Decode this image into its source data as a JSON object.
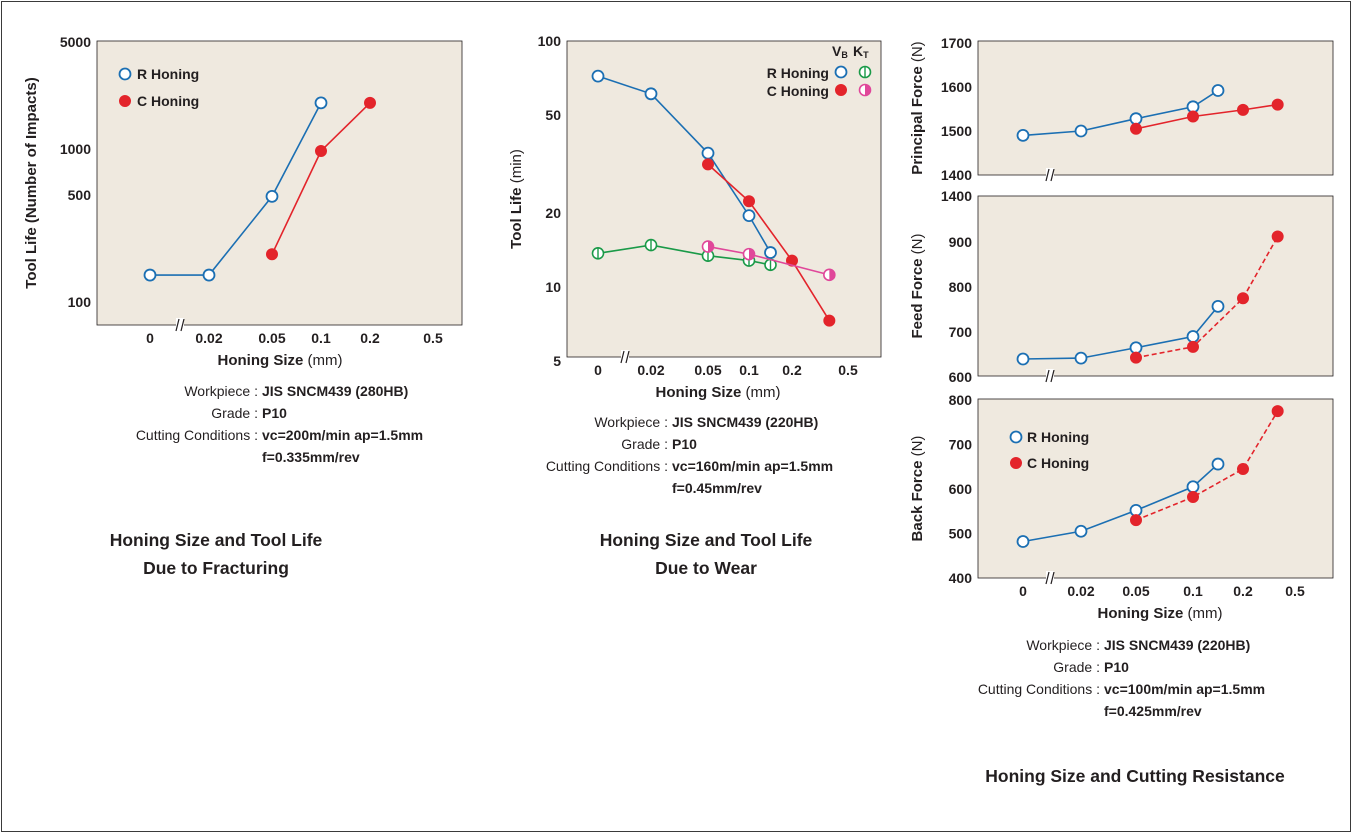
{
  "chart_data": [
    {
      "type": "line",
      "id": "fracture",
      "ylabel": "Tool Life (Number of Impacts)",
      "xlabel": "Honing Size",
      "xlabel_unit": "(mm)",
      "yscale": "log",
      "ylim": [
        70,
        5000
      ],
      "yticks": [
        "100",
        "500",
        "1000",
        "5000"
      ],
      "xticks": [
        "0",
        "0.02",
        "0.05",
        "0.1",
        "0.2",
        "0.5"
      ],
      "legend": "top-left",
      "series": [
        {
          "name": "R Honing",
          "marker": "open-circle",
          "color": "#1b6fb3",
          "points": [
            {
              "x": "0",
              "y": 150
            },
            {
              "x": "0.02",
              "y": 150
            },
            {
              "x": "0.05",
              "y": 490
            },
            {
              "x": "0.1",
              "y": 2000
            }
          ]
        },
        {
          "name": "C Honing",
          "marker": "filled-circle",
          "color": "#e3242b",
          "points": [
            {
              "x": "0.05",
              "y": 205
            },
            {
              "x": "0.1",
              "y": 970
            },
            {
              "x": "0.2",
              "y": 2000
            }
          ]
        }
      ]
    },
    {
      "type": "line",
      "id": "wear",
      "ylabel": "Tool Life",
      "ylabel_unit": "(min)",
      "xlabel": "Honing Size",
      "xlabel_unit": "(mm)",
      "yscale": "log",
      "ylim": [
        5,
        100
      ],
      "yticks": [
        "5",
        "10",
        "20",
        "50",
        "100"
      ],
      "xticks": [
        "0",
        "0.02",
        "0.05",
        "0.1",
        "0.2",
        "0.5"
      ],
      "legend": "top-right",
      "legend_headers": [
        "V",
        "B",
        "K",
        "T"
      ],
      "series": [
        {
          "name": "R Honing",
          "criterion": "VB",
          "marker": "open-circle",
          "color": "#1b6fb3",
          "points": [
            {
              "x": 0,
              "y": 72
            },
            {
              "x": 0.02,
              "y": 61
            },
            {
              "x": 0.05,
              "y": 35
            },
            {
              "x": 0.1,
              "y": 19.5
            },
            {
              "x": 0.15,
              "y": 13.8
            }
          ]
        },
        {
          "name": "R Honing",
          "criterion": "KT",
          "marker": "barred-circle",
          "color": "#1a9a48",
          "points": [
            {
              "x": 0,
              "y": 13.7
            },
            {
              "x": 0.02,
              "y": 14.8
            },
            {
              "x": 0.05,
              "y": 13.4
            },
            {
              "x": 0.1,
              "y": 12.8
            },
            {
              "x": 0.15,
              "y": 12.3
            }
          ]
        },
        {
          "name": "C Honing",
          "criterion": "VB",
          "marker": "filled-circle",
          "color": "#e3242b",
          "points": [
            {
              "x": 0.05,
              "y": 31.5
            },
            {
              "x": 0.1,
              "y": 22.3
            },
            {
              "x": 0.2,
              "y": 12.8
            },
            {
              "x": 0.4,
              "y": 7.3
            }
          ]
        },
        {
          "name": "C Honing",
          "criterion": "KT",
          "marker": "half-circle",
          "color": "#e0479a",
          "points": [
            {
              "x": 0.05,
              "y": 14.6
            },
            {
              "x": 0.1,
              "y": 13.6
            },
            {
              "x": 0.4,
              "y": 11.2
            }
          ]
        }
      ]
    },
    {
      "type": "line",
      "id": "principal",
      "ylabel": "Principal Force",
      "ylabel_unit": "(N)",
      "ylim": [
        1400,
        1700
      ],
      "yticks": [
        "1400",
        "1500",
        "1600",
        "1700"
      ],
      "series": [
        {
          "name": "R Honing",
          "color": "#1b6fb3",
          "marker": "open-circle",
          "points": [
            {
              "x": 0,
              "y": 1490
            },
            {
              "x": 0.02,
              "y": 1500
            },
            {
              "x": 0.05,
              "y": 1528
            },
            {
              "x": 0.1,
              "y": 1555
            },
            {
              "x": 0.15,
              "y": 1592
            }
          ]
        },
        {
          "name": "C Honing",
          "color": "#e3242b",
          "marker": "filled-circle",
          "points": [
            {
              "x": 0.05,
              "y": 1505
            },
            {
              "x": 0.1,
              "y": 1533
            },
            {
              "x": 0.2,
              "y": 1548
            },
            {
              "x": 0.4,
              "y": 1560
            }
          ]
        }
      ]
    },
    {
      "type": "line",
      "id": "feed",
      "ylabel": "Feed Force",
      "ylabel_unit": "(N)",
      "ylim": [
        600,
        1400
      ],
      "yticks": [
        "600",
        "700",
        "800",
        "900",
        "1400"
      ],
      "series": [
        {
          "name": "R Honing",
          "color": "#1b6fb3",
          "marker": "open-circle",
          "points": [
            {
              "x": 0,
              "y": 640
            },
            {
              "x": 0.02,
              "y": 642
            },
            {
              "x": 0.05,
              "y": 665
            },
            {
              "x": 0.1,
              "y": 690
            },
            {
              "x": 0.15,
              "y": 757
            }
          ]
        },
        {
          "name": "C Honing",
          "color": "#e3242b",
          "marker": "filled-circle",
          "dashed": true,
          "points": [
            {
              "x": 0.05,
              "y": 643
            },
            {
              "x": 0.1,
              "y": 667
            },
            {
              "x": 0.2,
              "y": 775
            },
            {
              "x": 0.4,
              "y": 960
            }
          ]
        }
      ]
    },
    {
      "type": "line",
      "id": "back",
      "ylabel": "Back Force",
      "ylabel_unit": "(N)",
      "xlabel": "Honing Size",
      "xlabel_unit": "(mm)",
      "ylim": [
        400,
        800
      ],
      "yticks": [
        "400",
        "500",
        "600",
        "700",
        "800"
      ],
      "xticks": [
        "0",
        "0.02",
        "0.05",
        "0.1",
        "0.2",
        "0.5"
      ],
      "legend": "top-left",
      "series": [
        {
          "name": "R Honing",
          "color": "#1b6fb3",
          "marker": "open-circle",
          "points": [
            {
              "x": 0,
              "y": 482
            },
            {
              "x": 0.02,
              "y": 505
            },
            {
              "x": 0.05,
              "y": 552
            },
            {
              "x": 0.1,
              "y": 605
            },
            {
              "x": 0.15,
              "y": 656
            }
          ]
        },
        {
          "name": "C Honing",
          "color": "#e3242b",
          "marker": "filled-circle",
          "dashed": true,
          "points": [
            {
              "x": 0.05,
              "y": 530
            },
            {
              "x": 0.1,
              "y": 582
            },
            {
              "x": 0.2,
              "y": 645
            },
            {
              "x": 0.4,
              "y": 775
            }
          ]
        }
      ]
    }
  ],
  "panels": {
    "fracture": {
      "conditions": [
        {
          "label": "Workpiece :",
          "value": "JIS SNCM439  (280HB)"
        },
        {
          "label": "Grade :",
          "value": "P10"
        },
        {
          "label": "Cutting Conditions :",
          "value": "vc=200m/min  ap=1.5mm"
        },
        {
          "label": "",
          "value": "f=0.335mm/rev"
        }
      ],
      "title": [
        "Honing Size and Tool Life",
        "Due to Fracturing"
      ]
    },
    "wear": {
      "conditions": [
        {
          "label": "Workpiece :",
          "value": "JIS SNCM439  (220HB)"
        },
        {
          "label": "Grade :",
          "value": "P10"
        },
        {
          "label": "Cutting Conditions :",
          "value": "vc=160m/min  ap=1.5mm"
        },
        {
          "label": "",
          "value": "f=0.45mm/rev"
        }
      ],
      "title": [
        "Honing Size and Tool Life",
        "Due to Wear"
      ]
    },
    "resistance": {
      "conditions": [
        {
          "label": "Workpiece :",
          "value": "JIS SNCM439  (220HB)"
        },
        {
          "label": "Grade :",
          "value": "P10"
        },
        {
          "label": "Cutting Conditions :",
          "value": "vc=100m/min  ap=1.5mm"
        },
        {
          "label": "",
          "value": "f=0.425mm/rev"
        }
      ],
      "title": [
        "Honing Size and Cutting Resistance"
      ]
    }
  },
  "colors": {
    "plot_bg": "#efe9df",
    "r_honing": "#1b6fb3",
    "c_honing": "#e3242b",
    "r_kt": "#1a9a48",
    "c_kt": "#e0479a"
  }
}
